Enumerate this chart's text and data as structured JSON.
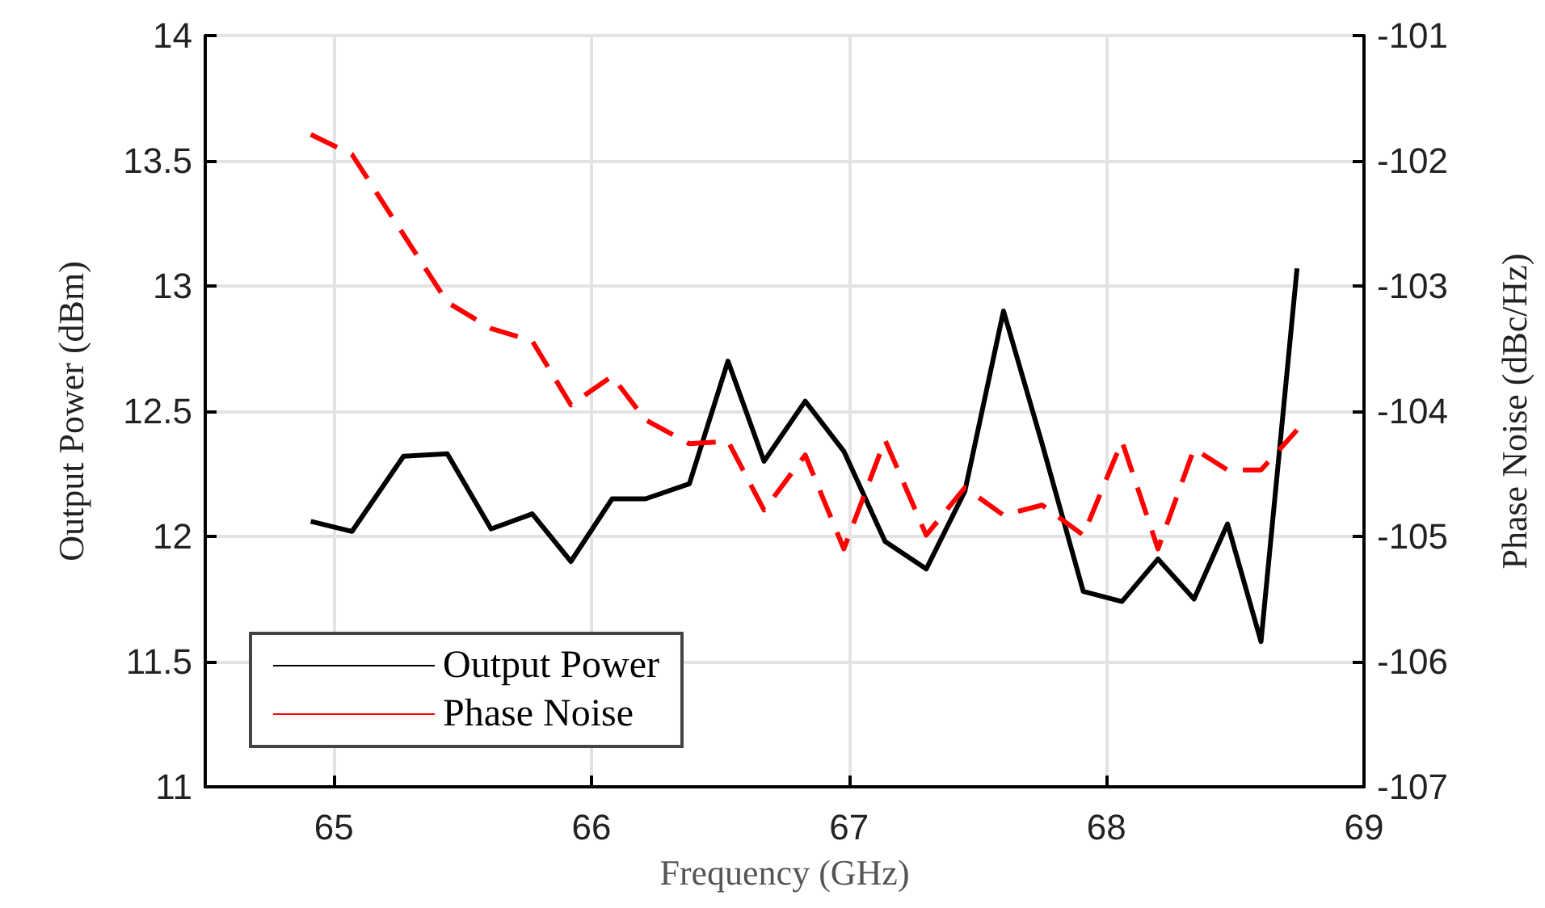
{
  "chart_data": {
    "type": "line",
    "xlabel": "Frequency (GHz)",
    "ylabel": "Output Power (dBm)",
    "y2label": "Phase Noise (dBc/Hz)",
    "x": [
      64.91,
      65.07,
      65.27,
      65.44,
      65.61,
      65.77,
      65.92,
      66.08,
      66.21,
      66.38,
      66.53,
      66.67,
      66.83,
      66.98,
      67.14,
      67.3,
      67.45,
      67.6,
      67.75,
      67.91,
      68.06,
      68.2,
      68.34,
      68.47,
      68.6,
      68.74
    ],
    "series": [
      {
        "name": "Output Power",
        "color": "#000000",
        "line_style": "solid",
        "values": [
          12.06,
          12.02,
          12.32,
          12.33,
          12.03,
          12.09,
          11.9,
          12.15,
          12.15,
          12.21,
          12.7,
          12.3,
          12.54,
          12.34,
          11.98,
          11.87,
          12.18,
          12.9,
          12.37,
          11.78,
          11.74,
          11.91,
          11.75,
          12.05,
          11.58,
          13.07
        ]
      },
      {
        "name": "Phase Noise",
        "color": "#ff0000",
        "line_style": "dashed",
        "axis": "y2",
        "values": [
          -101.79,
          -101.95,
          -102.59,
          -103.13,
          -103.34,
          -103.44,
          -103.95,
          -103.72,
          -104.07,
          -104.26,
          -104.24,
          -104.79,
          -104.35,
          -105.1,
          -104.23,
          -104.99,
          -104.61,
          -104.83,
          -104.75,
          -104.99,
          -104.24,
          -105.1,
          -104.3,
          -104.47,
          -104.47,
          -104.15
        ]
      }
    ],
    "xlim": [
      64.5,
      69
    ],
    "xticks": [
      65,
      66,
      67,
      68,
      69
    ],
    "ylim": [
      11,
      14
    ],
    "yticks": [
      11,
      11.5,
      12,
      12.5,
      13,
      13.5,
      14
    ],
    "y2lim": [
      -107,
      -101
    ],
    "y2ticks": [
      -107,
      -106,
      -105,
      -104,
      -103,
      -102,
      -101
    ],
    "grid": true,
    "legend": "bottom left",
    "marker": "none"
  }
}
